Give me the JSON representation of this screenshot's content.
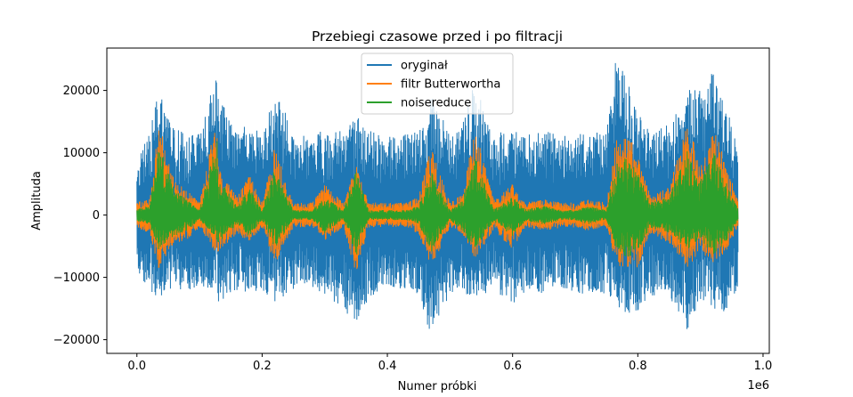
{
  "chart_data": {
    "type": "line",
    "title": "Przebiegi czasowe przed i po filtracji",
    "xlabel": "Numer próbki",
    "ylabel": "Amplituda",
    "x_offset_label": "1e6",
    "xlim": [
      -0.048,
      1.01
    ],
    "ylim": [
      -22200,
      26800
    ],
    "x_ticks": [
      0.0,
      0.2,
      0.4,
      0.6,
      0.8,
      1.0
    ],
    "x_tick_labels": [
      "0.0",
      "0.2",
      "0.4",
      "0.6",
      "0.8",
      "1.0"
    ],
    "y_ticks": [
      -20000,
      -10000,
      0,
      10000,
      20000
    ],
    "y_tick_labels": [
      "−20000",
      "−10000",
      "0",
      "10000",
      "20000"
    ],
    "grid": false,
    "legend_position": "upper center",
    "series": [
      {
        "name": "oryginał",
        "color": "#1f77b4",
        "x": [
          0.0,
          0.02,
          0.035,
          0.04,
          0.06,
          0.08,
          0.1,
          0.128,
          0.13,
          0.16,
          0.18,
          0.2,
          0.22,
          0.25,
          0.28,
          0.3,
          0.33,
          0.35,
          0.37,
          0.4,
          0.43,
          0.45,
          0.47,
          0.5,
          0.52,
          0.54,
          0.57,
          0.6,
          0.62,
          0.65,
          0.68,
          0.7,
          0.72,
          0.75,
          0.765,
          0.78,
          0.8,
          0.82,
          0.85,
          0.88,
          0.9,
          0.92,
          0.94,
          0.96
        ],
        "max": [
          9000,
          13000,
          20500,
          19000,
          14000,
          13000,
          13000,
          23000,
          19500,
          13000,
          16000,
          13000,
          21000,
          13000,
          13000,
          14000,
          13500,
          16000,
          13500,
          13000,
          13000,
          13500,
          20000,
          13000,
          15000,
          21500,
          13000,
          14000,
          13000,
          13500,
          13000,
          13000,
          13000,
          13500,
          25000,
          22500,
          16500,
          13500,
          14500,
          20000,
          21000,
          23000,
          17000,
          13000
        ],
        "min": [
          -9000,
          -12000,
          -14500,
          -13000,
          -12000,
          -12000,
          -12000,
          -11500,
          -14500,
          -12000,
          -12500,
          -12000,
          -14000,
          -12000,
          -12000,
          -13000,
          -15000,
          -17800,
          -13500,
          -12000,
          -12000,
          -14000,
          -19800,
          -12500,
          -12500,
          -13500,
          -12000,
          -14500,
          -12500,
          -12500,
          -12000,
          -12500,
          -13000,
          -12500,
          -14500,
          -16000,
          -15500,
          -13000,
          -13000,
          -18700,
          -13500,
          -15500,
          -15500,
          -12000
        ]
      },
      {
        "name": "filtr Butterwortha",
        "color": "#ff7f0e",
        "x": [
          0.0,
          0.02,
          0.035,
          0.04,
          0.06,
          0.08,
          0.1,
          0.128,
          0.13,
          0.16,
          0.18,
          0.2,
          0.22,
          0.25,
          0.28,
          0.3,
          0.33,
          0.35,
          0.37,
          0.4,
          0.43,
          0.45,
          0.47,
          0.5,
          0.52,
          0.54,
          0.57,
          0.6,
          0.62,
          0.65,
          0.68,
          0.7,
          0.72,
          0.75,
          0.765,
          0.78,
          0.8,
          0.82,
          0.85,
          0.88,
          0.9,
          0.92,
          0.94,
          0.96
        ],
        "max": [
          2000,
          3000,
          15000,
          13000,
          5500,
          4000,
          2000,
          16000,
          7500,
          3000,
          6500,
          2000,
          11000,
          2000,
          2000,
          5000,
          2000,
          8000,
          2000,
          2000,
          2000,
          3000,
          11000,
          2000,
          3500,
          14500,
          2500,
          5000,
          2000,
          2500,
          2000,
          2000,
          2500,
          2000,
          12000,
          13000,
          10500,
          3000,
          4500,
          15000,
          8000,
          15000,
          8500,
          2500
        ],
        "min": [
          -2000,
          -3000,
          -8700,
          -7500,
          -4500,
          -4000,
          -2000,
          -6500,
          -6000,
          -3000,
          -4500,
          -2000,
          -8000,
          -2000,
          -2000,
          -4000,
          -2000,
          -9500,
          -2000,
          -2000,
          -2000,
          -3000,
          -8500,
          -2000,
          -3000,
          -7000,
          -2500,
          -5500,
          -2000,
          -2500,
          -2000,
          -2000,
          -2500,
          -2000,
          -8000,
          -8500,
          -8500,
          -3000,
          -4500,
          -8500,
          -6000,
          -8000,
          -6000,
          -2000
        ]
      },
      {
        "name": "noisereduce",
        "color": "#2ca02c",
        "x": [
          0.0,
          0.02,
          0.035,
          0.04,
          0.06,
          0.08,
          0.1,
          0.128,
          0.13,
          0.16,
          0.18,
          0.2,
          0.22,
          0.25,
          0.28,
          0.3,
          0.33,
          0.35,
          0.37,
          0.4,
          0.43,
          0.45,
          0.47,
          0.5,
          0.52,
          0.54,
          0.57,
          0.6,
          0.62,
          0.65,
          0.68,
          0.7,
          0.72,
          0.75,
          0.765,
          0.78,
          0.8,
          0.82,
          0.85,
          0.88,
          0.9,
          0.92,
          0.94,
          0.96
        ],
        "max": [
          1000,
          1500,
          11500,
          10000,
          4000,
          2500,
          800,
          12500,
          6000,
          1500,
          4500,
          800,
          8000,
          800,
          800,
          3000,
          800,
          7500,
          800,
          800,
          800,
          1500,
          7000,
          800,
          2500,
          9500,
          1000,
          3000,
          1000,
          1500,
          800,
          800,
          1500,
          800,
          8500,
          9500,
          7000,
          2000,
          3000,
          10500,
          5500,
          10500,
          5500,
          1000
        ],
        "min": [
          -1000,
          -1500,
          -6000,
          -5000,
          -3500,
          -2500,
          -800,
          -4000,
          -4500,
          -1500,
          -3500,
          -800,
          -5500,
          -800,
          -800,
          -3000,
          -800,
          -7000,
          -800,
          -800,
          -800,
          -1500,
          -6000,
          -800,
          -2500,
          -6000,
          -1000,
          -3500,
          -1000,
          -1500,
          -800,
          -800,
          -1500,
          -800,
          -5500,
          -7000,
          -6000,
          -2000,
          -3000,
          -5500,
          -4000,
          -6500,
          -4500,
          -1000
        ]
      }
    ]
  }
}
